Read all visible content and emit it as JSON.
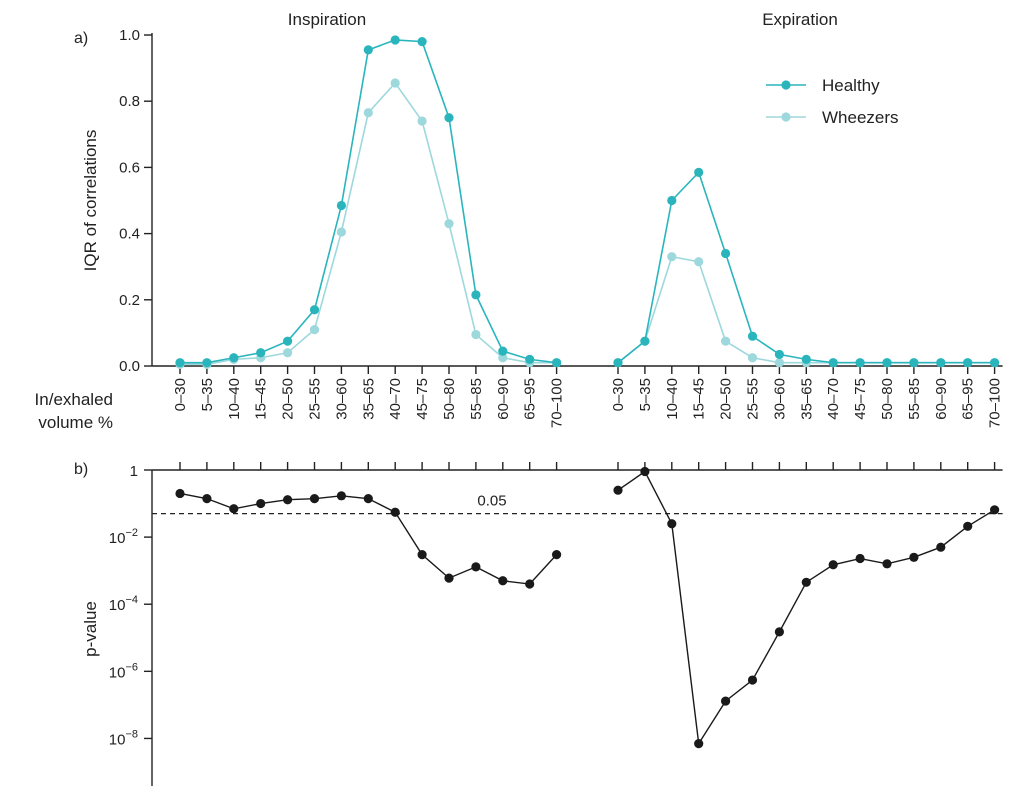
{
  "chart_data": [
    {
      "panel": "a)",
      "type": "line",
      "ylabel": "IQR of correlations",
      "xlabel": "In/exhaled\nvolume %",
      "ylim": [
        0.0,
        1.0
      ],
      "yticks": [
        "0.0",
        "0.2",
        "0.4",
        "0.6",
        "0.8",
        "1.0"
      ],
      "groups": [
        {
          "title": "Inspiration",
          "categories": [
            "0–30",
            "5–35",
            "10–40",
            "15–45",
            "20–50",
            "25–55",
            "30–60",
            "35–65",
            "40–70",
            "45–75",
            "50–80",
            "55–85",
            "60–90",
            "65–95",
            "70–100"
          ],
          "series": [
            {
              "name": "Healthy",
              "values": [
                0.01,
                0.01,
                0.025,
                0.04,
                0.075,
                0.17,
                0.485,
                0.955,
                0.985,
                0.98,
                0.75,
                0.215,
                0.045,
                0.02,
                0.01
              ]
            },
            {
              "name": "Wheezers",
              "values": [
                0.005,
                0.005,
                0.02,
                0.025,
                0.04,
                0.11,
                0.405,
                0.765,
                0.855,
                0.74,
                0.43,
                0.095,
                0.025,
                0.01,
                0.01
              ]
            }
          ]
        },
        {
          "title": "Expiration",
          "categories": [
            "0–30",
            "5–35",
            "10–40",
            "15–45",
            "20–50",
            "25–55",
            "30–60",
            "35–65",
            "40–70",
            "45–75",
            "50–80",
            "55–85",
            "60–90",
            "65–95",
            "70–100"
          ],
          "series": [
            {
              "name": "Healthy",
              "values": [
                0.01,
                0.075,
                0.5,
                0.585,
                0.34,
                0.09,
                0.035,
                0.02,
                0.01,
                0.01,
                0.01,
                0.01,
                0.01,
                0.01,
                0.01
              ]
            },
            {
              "name": "Wheezers",
              "values": [
                0.01,
                0.075,
                0.33,
                0.315,
                0.075,
                0.025,
                0.01,
                0.01,
                0.01,
                0.01,
                0.01,
                0.01,
                0.01,
                0.01,
                0.01
              ]
            }
          ]
        }
      ],
      "legend": {
        "position": "top-right",
        "entries": [
          "Healthy",
          "Wheezers"
        ]
      }
    },
    {
      "panel": "b)",
      "type": "line",
      "ylabel": "p-value",
      "yscale": "log",
      "ylim": [
        1e-09,
        1
      ],
      "yticks": [
        {
          "base": "1",
          "exp": ""
        },
        {
          "base": "10",
          "exp": "-2"
        },
        {
          "base": "10",
          "exp": "-4"
        },
        {
          "base": "10",
          "exp": "-6"
        },
        {
          "base": "10",
          "exp": "-8"
        }
      ],
      "threshold": {
        "value": 0.05,
        "label": "0.05"
      },
      "groups": [
        {
          "title": "Inspiration",
          "values": [
            0.2,
            0.14,
            0.07,
            0.1,
            0.13,
            0.14,
            0.17,
            0.14,
            0.055,
            0.003,
            0.0006,
            0.0013,
            0.0005,
            0.0004,
            0.003
          ]
        },
        {
          "title": "Expiration",
          "values": [
            0.25,
            0.9,
            0.025,
            7e-09,
            1.3e-07,
            5.5e-07,
            1.5e-05,
            0.00045,
            0.0015,
            0.0023,
            0.0016,
            0.0025,
            0.005,
            0.021,
            0.065
          ]
        }
      ]
    }
  ],
  "colors": {
    "healthy": "#2ab5bd",
    "wheezers": "#9dd8dc",
    "pvalue": "#1a1a1a",
    "axis": "#222222"
  }
}
